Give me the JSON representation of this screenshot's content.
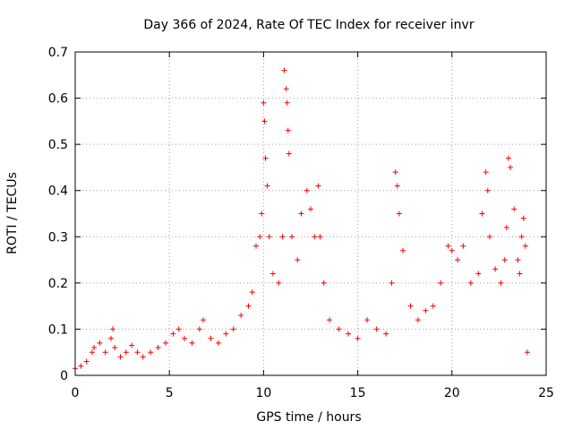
{
  "chart_data": {
    "type": "scatter",
    "title": "Day 366 of 2024, Rate Of TEC Index for receiver invr",
    "xlabel": "GPS time / hours",
    "ylabel": "ROTI / TECUs",
    "xlim": [
      0,
      25
    ],
    "ylim": [
      0,
      0.7
    ],
    "xticks": [
      0,
      5,
      10,
      15,
      20,
      25
    ],
    "yticks": [
      0,
      0.1,
      0.2,
      0.3,
      0.4,
      0.5,
      0.6,
      0.7
    ],
    "xtick_labels": [
      "0",
      "5",
      "10",
      "15",
      "20",
      "25"
    ],
    "ytick_labels": [
      "0",
      "0.1",
      "0.2",
      "0.3",
      "0.4",
      "0.5",
      "0.6",
      "0.7"
    ],
    "grid": true,
    "marker": "+",
    "color": "#ff0000",
    "series": [
      {
        "name": "ROTI",
        "x": [
          0.0,
          0.3,
          0.6,
          0.9,
          1.0,
          1.3,
          1.6,
          1.9,
          2.0,
          2.1,
          2.4,
          2.7,
          3.0,
          3.3,
          3.6,
          4.0,
          4.4,
          4.8,
          5.2,
          5.5,
          5.8,
          6.2,
          6.6,
          6.8,
          7.2,
          7.6,
          8.0,
          8.4,
          8.8,
          9.2,
          9.4,
          9.6,
          9.8,
          9.9,
          10.0,
          10.05,
          10.1,
          10.2,
          10.3,
          10.5,
          10.8,
          11.0,
          11.1,
          11.2,
          11.25,
          11.3,
          11.35,
          11.5,
          11.8,
          12.0,
          12.3,
          12.5,
          12.7,
          12.9,
          13.0,
          13.2,
          13.5,
          14.0,
          14.5,
          15.0,
          15.5,
          16.0,
          16.5,
          16.8,
          17.0,
          17.1,
          17.2,
          17.4,
          17.8,
          18.2,
          18.6,
          19.0,
          19.4,
          19.8,
          20.0,
          20.3,
          20.6,
          21.0,
          21.4,
          21.6,
          21.8,
          21.9,
          22.0,
          22.3,
          22.6,
          22.8,
          22.9,
          23.0,
          23.1,
          23.3,
          23.5,
          23.6,
          23.7,
          23.8,
          23.9,
          24.0
        ],
        "y": [
          0.015,
          0.02,
          0.03,
          0.05,
          0.06,
          0.07,
          0.05,
          0.08,
          0.1,
          0.06,
          0.04,
          0.05,
          0.065,
          0.05,
          0.04,
          0.05,
          0.06,
          0.07,
          0.09,
          0.1,
          0.08,
          0.07,
          0.1,
          0.12,
          0.08,
          0.07,
          0.09,
          0.1,
          0.13,
          0.15,
          0.18,
          0.28,
          0.3,
          0.35,
          0.59,
          0.55,
          0.47,
          0.41,
          0.3,
          0.22,
          0.2,
          0.3,
          0.66,
          0.62,
          0.59,
          0.53,
          0.48,
          0.3,
          0.25,
          0.35,
          0.4,
          0.36,
          0.3,
          0.41,
          0.3,
          0.2,
          0.12,
          0.1,
          0.09,
          0.08,
          0.12,
          0.1,
          0.09,
          0.2,
          0.44,
          0.41,
          0.35,
          0.27,
          0.15,
          0.12,
          0.14,
          0.15,
          0.2,
          0.28,
          0.27,
          0.25,
          0.28,
          0.2,
          0.22,
          0.35,
          0.44,
          0.4,
          0.3,
          0.23,
          0.2,
          0.25,
          0.32,
          0.47,
          0.45,
          0.36,
          0.25,
          0.22,
          0.3,
          0.34,
          0.28,
          0.05
        ]
      }
    ]
  }
}
